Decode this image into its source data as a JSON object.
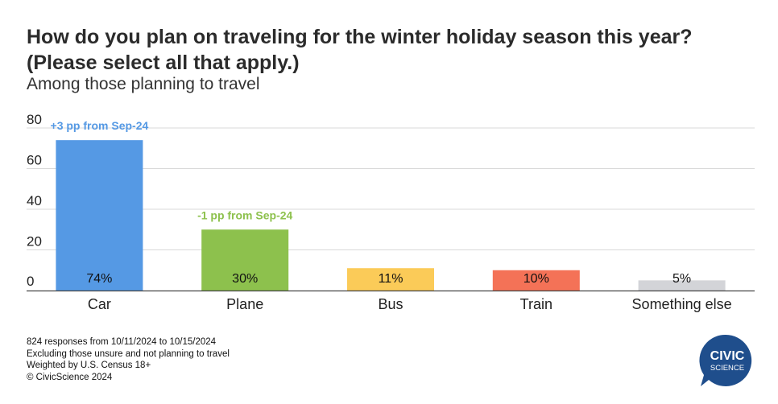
{
  "chart_data": {
    "type": "bar",
    "title": "How do you plan on traveling for the winter holiday season this year? (Please select all that apply.)",
    "subtitle": "Among those planning to travel",
    "categories": [
      "Car",
      "Plane",
      "Bus",
      "Train",
      "Something else"
    ],
    "values": [
      74,
      30,
      11,
      10,
      5
    ],
    "value_labels": [
      "74%",
      "30%",
      "11%",
      "10%",
      "5%"
    ],
    "colors": [
      "#5599e4",
      "#8dc14d",
      "#fbcb58",
      "#f47257",
      "#d3d4d8"
    ],
    "annotations": [
      {
        "category": "Car",
        "text": "+3 pp from Sep-24",
        "color": "#5599e4"
      },
      {
        "category": "Plane",
        "text": "-1 pp from Sep-24",
        "color": "#8dc14d"
      }
    ],
    "yticks": [
      0,
      20,
      40,
      60,
      80
    ],
    "ylim": [
      0,
      80
    ],
    "grid": true
  },
  "footer": {
    "lines": [
      "824 responses from 10/11/2024 to 10/15/2024",
      "Excluding those unsure and not planning to travel",
      "Weighted by U.S. Census 18+",
      "© CivicScience 2024"
    ]
  },
  "logo": {
    "line1": "CIVIC",
    "line2": "SCIENCE",
    "color": "#1f4e8c"
  }
}
